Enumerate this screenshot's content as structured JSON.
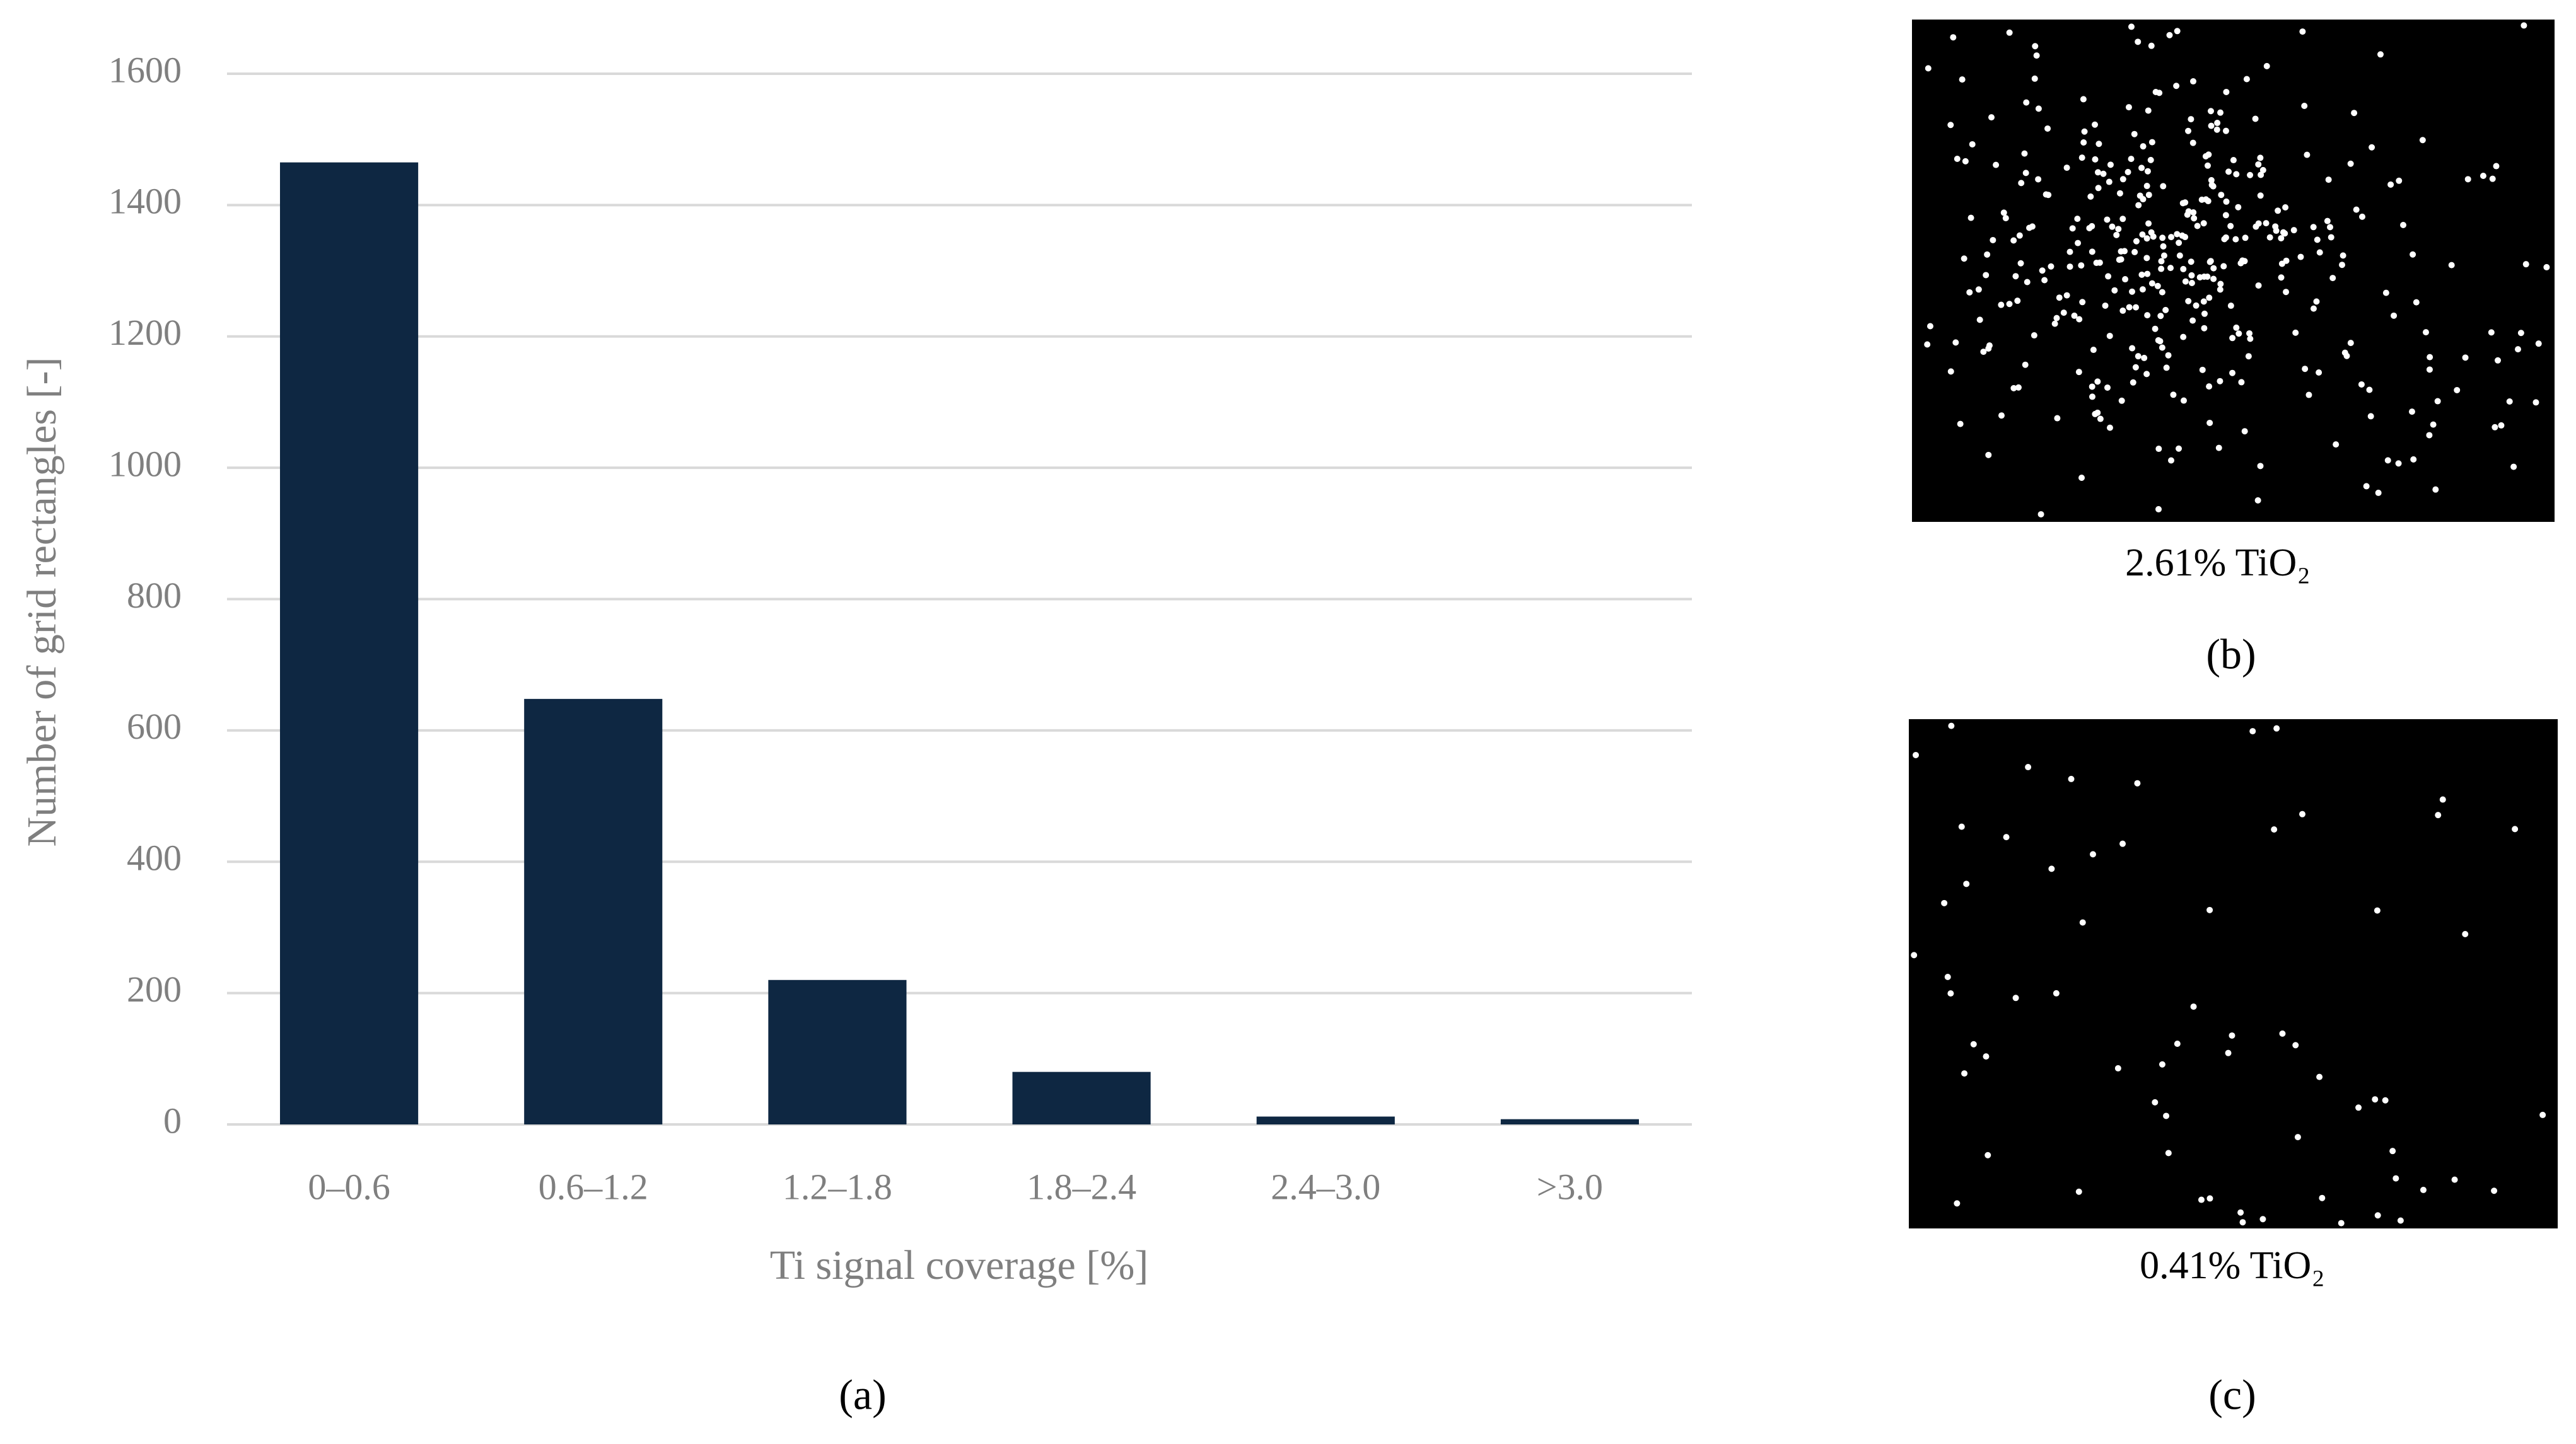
{
  "chart_data": {
    "type": "bar",
    "categories": [
      "0–0.6",
      "0.6–1.2",
      "1.2–1.8",
      "1.8–2.4",
      "2.4–3.0",
      ">3.0"
    ],
    "values": [
      1465,
      648,
      220,
      80,
      12,
      8
    ],
    "color": "#0e2742",
    "ylim": [
      0,
      1600
    ],
    "yticks": [
      0,
      200,
      400,
      600,
      800,
      1000,
      1200,
      1400,
      1600
    ],
    "grid": true,
    "xlabel": "Ti signal coverage [%]",
    "ylabel": "Number of grid rectangles [-]",
    "panel_label": "(a)"
  },
  "images": [
    {
      "caption": "2.61% TiO₂",
      "panel_label": "(b)"
    },
    {
      "caption": "0.41% TiO₂",
      "panel_label": "(c)"
    }
  ]
}
